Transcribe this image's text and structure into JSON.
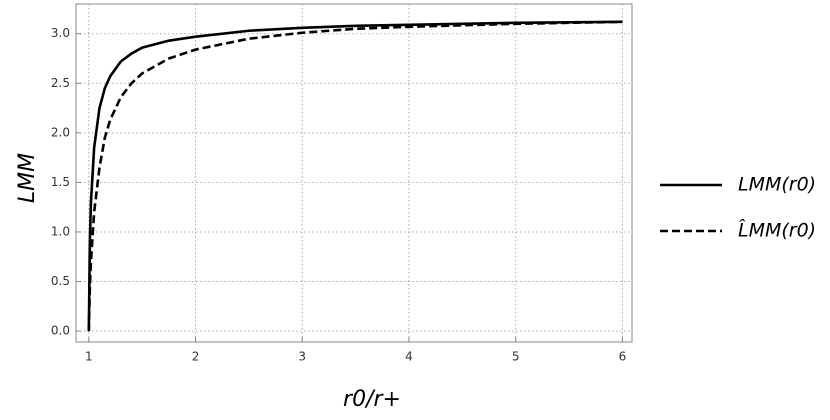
{
  "chart_data": {
    "type": "line",
    "xlabel": "r0/r+",
    "ylabel": "LMM",
    "x": [
      1,
      1.01,
      1.02,
      1.05,
      1.1,
      1.15,
      1.2,
      1.3,
      1.4,
      1.5,
      1.75,
      2,
      2.5,
      3,
      3.5,
      4,
      5,
      6
    ],
    "series": [
      {
        "name": "LMM(r0)",
        "color": "#000000",
        "dash": false,
        "values": [
          0,
          0.9,
          1.3,
          1.85,
          2.25,
          2.45,
          2.57,
          2.72,
          2.8,
          2.86,
          2.93,
          2.97,
          3.03,
          3.06,
          3.08,
          3.09,
          3.11,
          3.12
        ]
      },
      {
        "name": "L̂MM(r0)",
        "color": "#000000",
        "dash": true,
        "values": [
          0,
          0.45,
          0.7,
          1.2,
          1.65,
          1.95,
          2.13,
          2.36,
          2.5,
          2.6,
          2.75,
          2.84,
          2.95,
          3.01,
          3.05,
          3.07,
          3.1,
          3.12
        ]
      }
    ],
    "xlim": [
      0.88,
      6.09
    ],
    "ylim": [
      -0.11,
      3.3
    ],
    "xticks": [
      1,
      2,
      3,
      4,
      5,
      6
    ],
    "yticks": [
      {
        "value": 0,
        "label": "0.0"
      },
      {
        "value": 0.5,
        "label": "0.5"
      },
      {
        "value": 1,
        "label": "1.0"
      },
      {
        "value": 1.5,
        "label": "1.5"
      },
      {
        "value": 2,
        "label": "2.0"
      },
      {
        "value": 2.5,
        "label": "2.5"
      },
      {
        "value": 3,
        "label": "3.0"
      }
    ],
    "grid": true,
    "legend": "right"
  }
}
